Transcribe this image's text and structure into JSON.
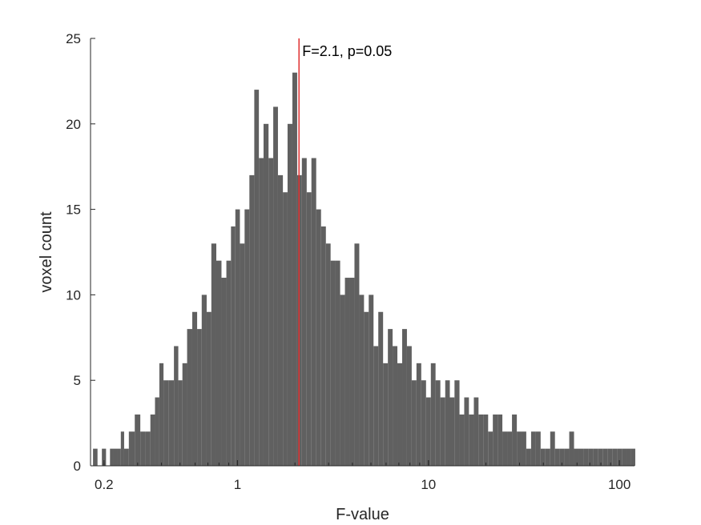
{
  "chart_data": {
    "type": "bar",
    "title": "",
    "xlabel": "F-value",
    "ylabel": "voxel count",
    "xscale": "log",
    "xlim": [
      0.17,
      120
    ],
    "ylim": [
      0,
      25
    ],
    "xticks": [
      {
        "value": 0.2,
        "label": "0.2"
      },
      {
        "value": 1,
        "label": "1"
      },
      {
        "value": 10,
        "label": "10"
      },
      {
        "value": 100,
        "label": "100"
      }
    ],
    "yticks": [
      {
        "value": 0,
        "label": "0"
      },
      {
        "value": 5,
        "label": "5"
      },
      {
        "value": 10,
        "label": "10"
      },
      {
        "value": 15,
        "label": "15"
      },
      {
        "value": 20,
        "label": "20"
      },
      {
        "value": 25,
        "label": "25"
      }
    ],
    "grid": false,
    "legend": "none",
    "bar_color": "#606060",
    "threshold_color": "#e03030",
    "threshold": {
      "x": 2.1,
      "label": "F=2.1, p=0.05"
    },
    "bins": {
      "x": [
        0.18,
        0.19,
        0.2,
        0.21,
        0.22,
        0.23,
        0.24,
        0.25,
        0.26,
        0.28,
        0.3,
        0.32,
        0.34,
        0.36,
        0.38,
        0.4,
        0.42,
        0.45,
        0.48,
        0.5,
        0.53,
        0.56,
        0.6,
        0.63,
        0.67,
        0.71,
        0.75,
        0.8,
        0.85,
        0.9,
        0.95,
        1.0,
        1.06,
        1.12,
        1.19,
        1.26,
        1.33,
        1.41,
        1.5,
        1.58,
        1.68,
        1.78,
        1.88,
        2.0,
        2.11,
        2.24,
        2.37,
        2.51,
        2.66,
        2.82,
        2.99,
        3.16,
        3.35,
        3.55,
        3.76,
        3.98,
        4.22,
        4.47,
        4.73,
        5.01,
        5.31,
        5.62,
        5.96,
        6.31,
        6.68,
        7.08,
        7.5,
        7.94,
        8.41,
        8.91,
        9.44,
        10.0,
        10.6,
        11.2,
        11.9,
        12.6,
        13.3,
        14.1,
        15.0,
        15.8,
        16.8,
        17.8,
        18.8,
        20.0,
        21.1,
        22.4,
        23.7,
        25.1,
        26.6,
        28.2,
        29.9,
        31.6,
        33.5,
        35.5,
        37.6,
        39.8,
        42.2,
        44.7,
        47.3,
        50.1,
        53.1,
        56.2,
        59.6,
        63.1,
        66.8,
        70.8,
        75.0,
        79.4,
        84.1,
        89.1,
        94.4,
        100,
        106,
        112,
        118
      ],
      "count": [
        1,
        0,
        1,
        0,
        1,
        1,
        1,
        2,
        1,
        2,
        3,
        2,
        2,
        3,
        4,
        6,
        5,
        5,
        7,
        5,
        6,
        8,
        9,
        8,
        10,
        9,
        13,
        12,
        11,
        12,
        14,
        15,
        13,
        15,
        17,
        22,
        18,
        20,
        18,
        21,
        17,
        16,
        20,
        23,
        17,
        18,
        16,
        18,
        15,
        14,
        13,
        12,
        12,
        10,
        11,
        11,
        13,
        10,
        9,
        10,
        7,
        9,
        6,
        8,
        7,
        6,
        8,
        7,
        5,
        6,
        5,
        4,
        6,
        5,
        4,
        5,
        4,
        5,
        3,
        4,
        3,
        4,
        3,
        3,
        2,
        3,
        3,
        2,
        2,
        3,
        2,
        2,
        1,
        2,
        2,
        1,
        1,
        2,
        1,
        1,
        1,
        2,
        1,
        1,
        1,
        1,
        1,
        1,
        1,
        1,
        1,
        1,
        1,
        1,
        1
      ]
    }
  }
}
